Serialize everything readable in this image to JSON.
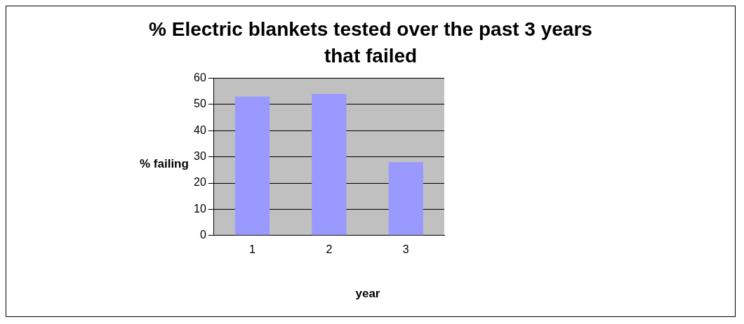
{
  "chart_data": {
    "type": "bar",
    "title": "% Electric blankets tested over the past 3 years that failed",
    "xlabel": "year",
    "ylabel": "% failing",
    "categories": [
      "1",
      "2",
      "3"
    ],
    "values": [
      53,
      54,
      28
    ],
    "color": "#9999ff",
    "ylim": [
      0,
      60
    ],
    "yticks": [
      0,
      10,
      20,
      30,
      40,
      50,
      60
    ],
    "grid": "y",
    "legend": false
  }
}
